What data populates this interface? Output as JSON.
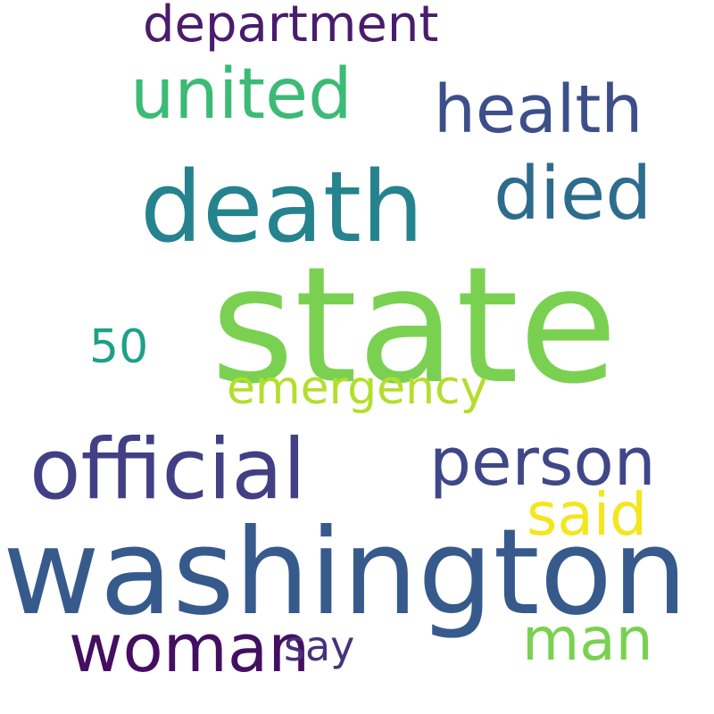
{
  "word_cloud": {
    "background_color": "#ffffff",
    "words": [
      {
        "id": "state",
        "text": "state",
        "color": "#7ad151"
      },
      {
        "id": "washington",
        "text": "washington",
        "color": "#375a8c"
      },
      {
        "id": "death",
        "text": "death",
        "color": "#25838e"
      },
      {
        "id": "official",
        "text": "official",
        "color": "#423f85"
      },
      {
        "id": "died",
        "text": "died",
        "color": "#2e6c8e"
      },
      {
        "id": "united",
        "text": "united",
        "color": "#3bbb75"
      },
      {
        "id": "person",
        "text": "person",
        "color": "#3f4788"
      },
      {
        "id": "health",
        "text": "health",
        "color": "#3c4f8a"
      },
      {
        "id": "woman",
        "text": "woman",
        "color": "#440f60"
      },
      {
        "id": "said",
        "text": "said",
        "color": "#f4e61e"
      },
      {
        "id": "man",
        "text": "man",
        "color": "#7ad151"
      },
      {
        "id": "department",
        "text": "department",
        "color": "#4a1c6c"
      },
      {
        "id": "emergency",
        "text": "emergency",
        "color": "#b4de2c"
      },
      {
        "id": "say",
        "text": "say",
        "color": "#46327e"
      },
      {
        "id": "50",
        "text": "50",
        "color": "#1fa088"
      }
    ]
  }
}
